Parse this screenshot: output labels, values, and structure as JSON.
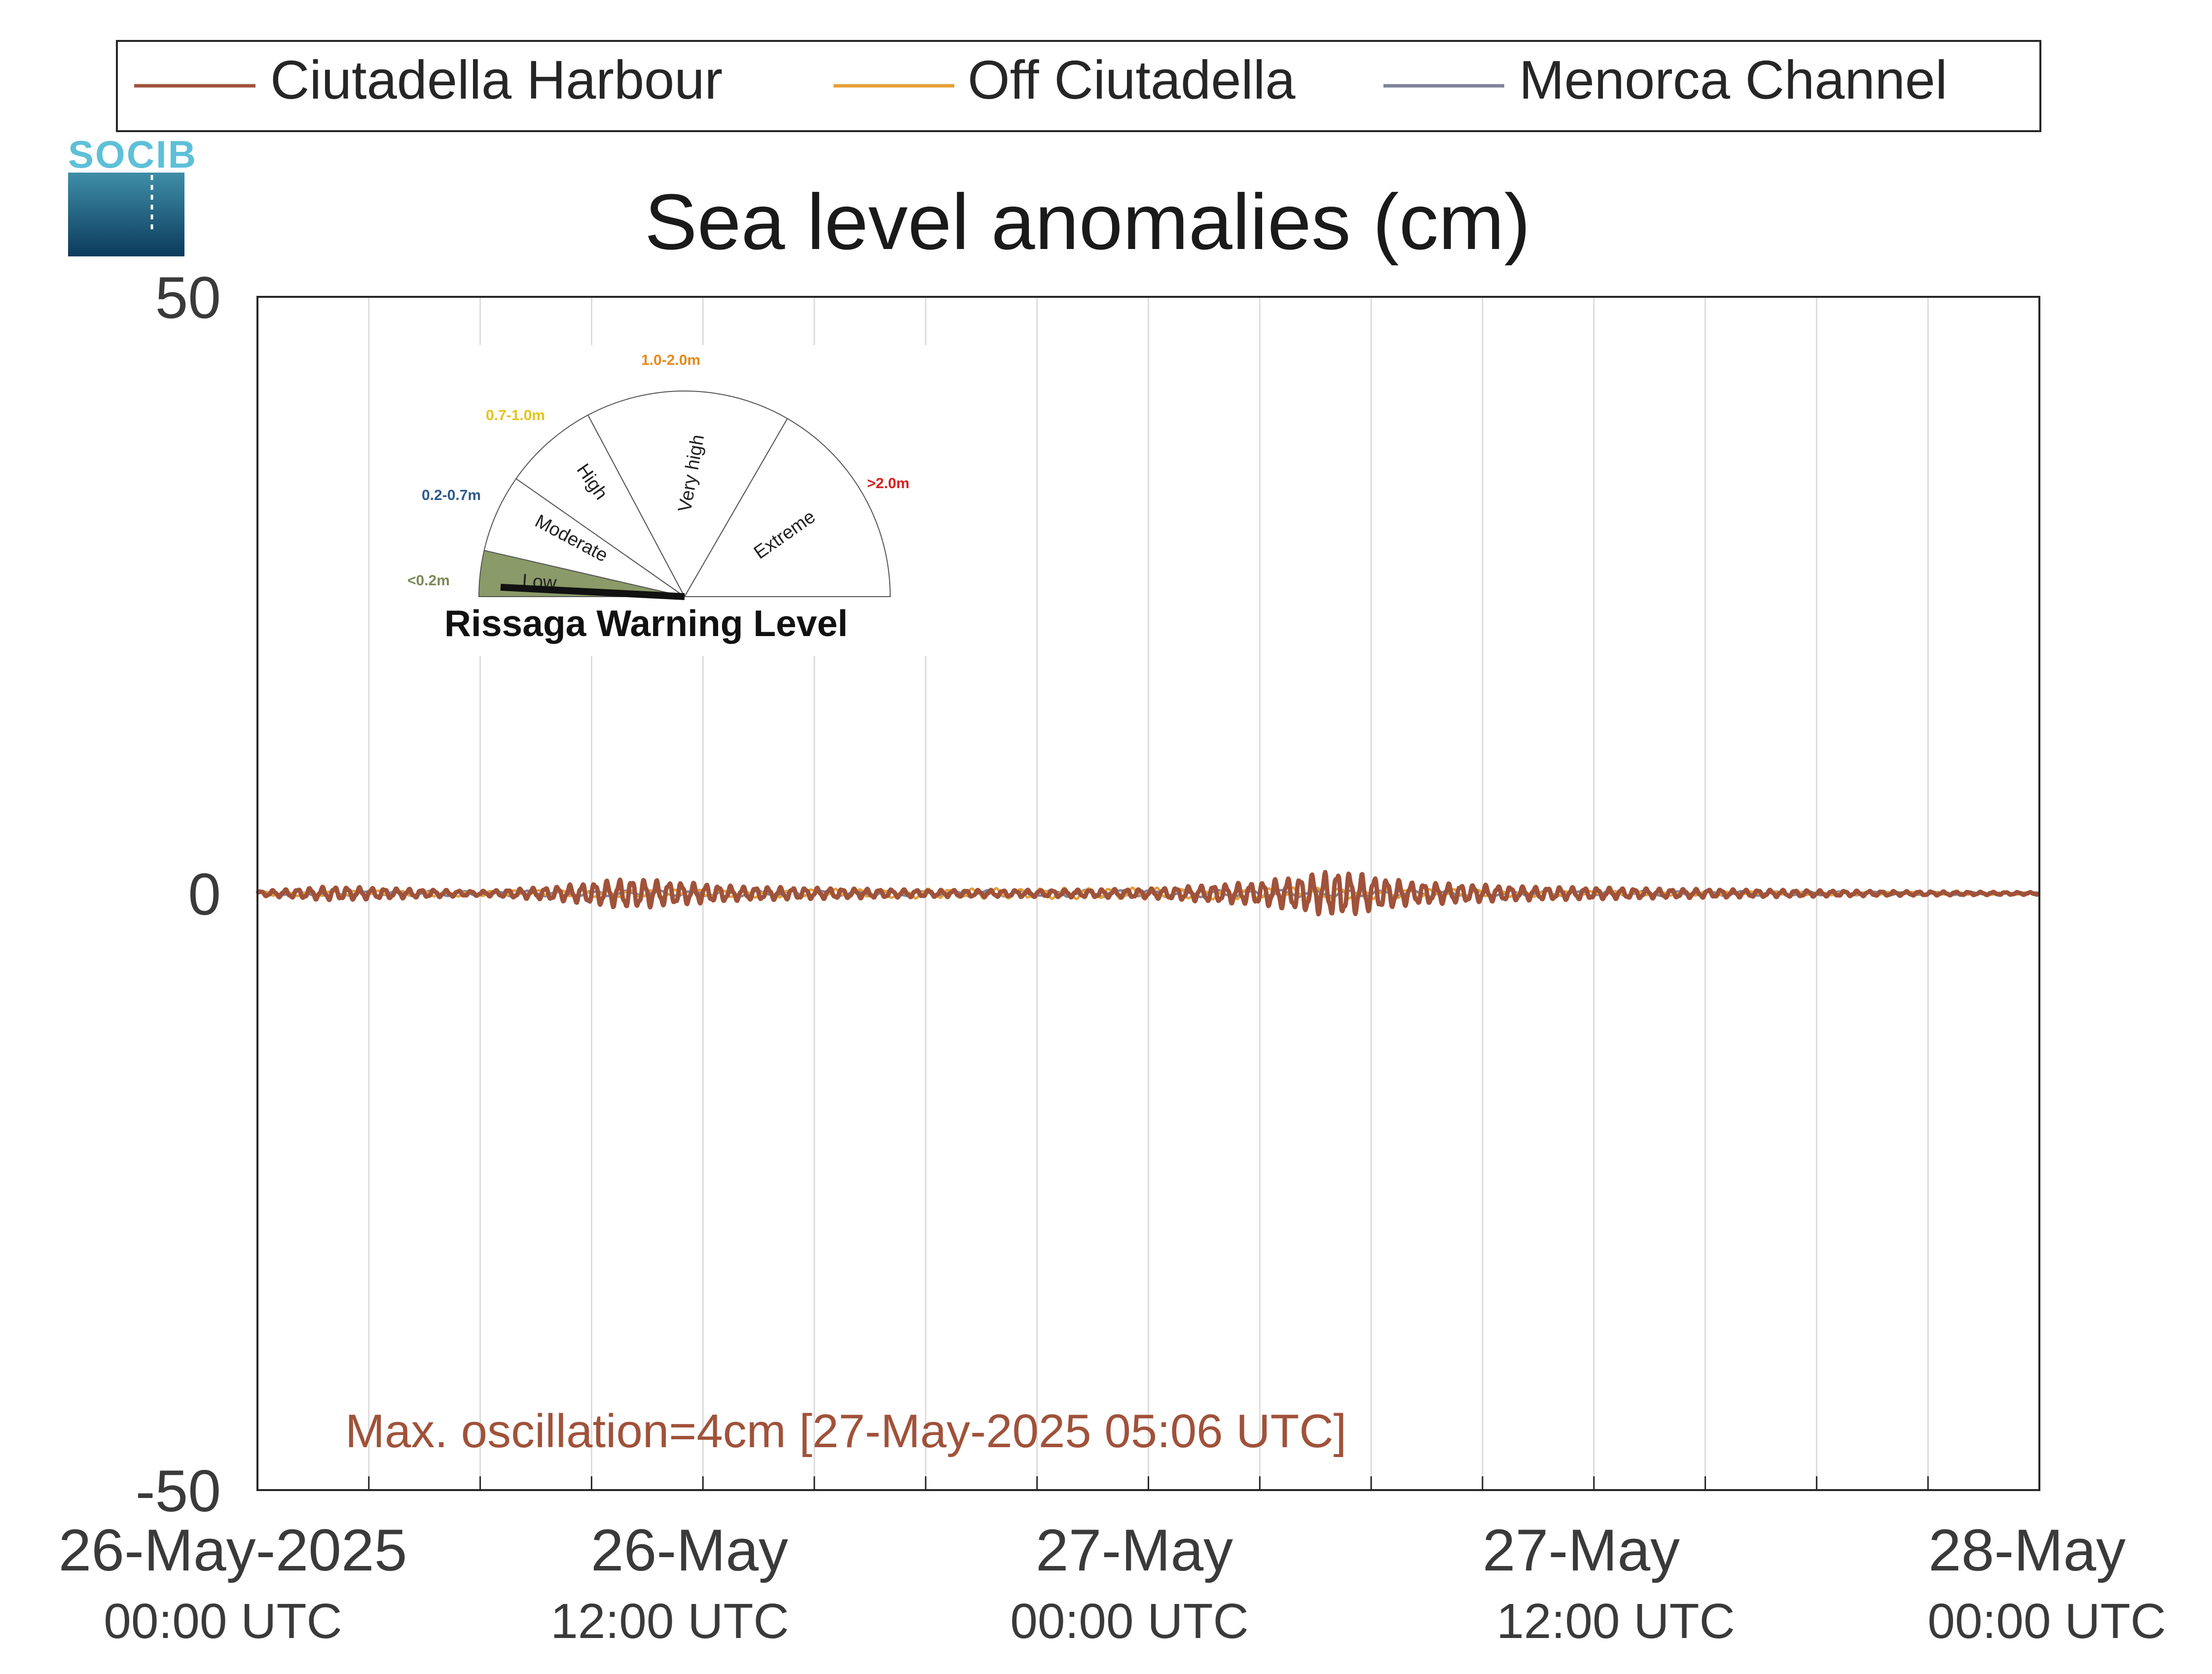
{
  "logo": {
    "text": "SOCIB"
  },
  "legend": {
    "items": [
      {
        "label": "Ciutadella Harbour",
        "color": "#a0523a"
      },
      {
        "label": "Off Ciutadella",
        "color": "#e5a03a"
      },
      {
        "label": "Menorca Channel",
        "color": "#7f839a"
      }
    ]
  },
  "chart_data": {
    "type": "line",
    "title": "Sea level anomalies (cm)",
    "xlabel": "",
    "ylabel": "",
    "ylim": [
      -50,
      50
    ],
    "yticks": [
      50,
      0,
      -50
    ],
    "xlim": [
      "2025-05-26 00:00",
      "2025-05-28 00:00"
    ],
    "xtick_labels": [
      {
        "x": "2025-05-26 00:00",
        "line1": "26-May-2025",
        "line2": "00:00 UTC"
      },
      {
        "x": "2025-05-26 12:00",
        "line1": "26-May",
        "line2": "12:00 UTC"
      },
      {
        "x": "2025-05-27 00:00",
        "line1": "27-May",
        "line2": "00:00 UTC"
      },
      {
        "x": "2025-05-27 12:00",
        "line1": "27-May",
        "line2": "12:00 UTC"
      },
      {
        "x": "2025-05-28 00:00",
        "line1": "28-May",
        "line2": "00:00 UTC"
      }
    ],
    "grid": true,
    "legend_position": "top",
    "series": [
      {
        "name": "Ciutadella Harbour",
        "color": "#a0523a",
        "amplitude_envelope_cm": [
          [
            "2025-05-26 00:00",
            0.2
          ],
          [
            "2025-05-26 02:00",
            0.6
          ],
          [
            "2025-05-26 03:00",
            0.5
          ],
          [
            "2025-05-26 06:00",
            0.2
          ],
          [
            "2025-05-26 08:00",
            0.6
          ],
          [
            "2025-05-26 10:00",
            1.3
          ],
          [
            "2025-05-26 13:00",
            0.6
          ],
          [
            "2025-05-26 18:00",
            0.3
          ],
          [
            "2025-05-26 21:00",
            0.3
          ],
          [
            "2025-05-27 00:00",
            0.4
          ],
          [
            "2025-05-27 03:00",
            1.0
          ],
          [
            "2025-05-27 05:06",
            2.0
          ],
          [
            "2025-05-27 07:00",
            1.0
          ],
          [
            "2025-05-27 10:00",
            0.6
          ],
          [
            "2025-05-27 14:00",
            0.4
          ],
          [
            "2025-05-27 20:00",
            0.2
          ],
          [
            "2025-05-28 00:00",
            0.1
          ]
        ]
      },
      {
        "name": "Off Ciutadella",
        "color": "#e5a03a",
        "amplitude_envelope_cm": [
          [
            "2025-05-26 00:00",
            0.2
          ],
          [
            "2025-05-26 10:00",
            0.3
          ],
          [
            "2025-05-27 00:00",
            0.5
          ],
          [
            "2025-05-27 05:00",
            0.5
          ],
          [
            "2025-05-27 12:00",
            0.2
          ],
          [
            "2025-05-28 00:00",
            0.1
          ]
        ]
      },
      {
        "name": "Menorca Channel",
        "color": "#7f839a",
        "amplitude_envelope_cm": [
          [
            "2025-05-26 00:00",
            0.2
          ],
          [
            "2025-05-27 00:00",
            0.3
          ],
          [
            "2025-05-27 05:00",
            0.3
          ],
          [
            "2025-05-28 00:00",
            0.1
          ]
        ]
      }
    ],
    "annotation": {
      "text": "Max. oscillation=4cm [27-May-2025 05:06 UTC]",
      "color": "#a0523a"
    }
  },
  "gauge": {
    "title": "Rissaga Warning Level",
    "active_level": "Low",
    "sectors": [
      {
        "label": "Low",
        "range": "<0.2m",
        "range_color": "#7a8a55",
        "fill": "#8a9a68"
      },
      {
        "label": "Moderate",
        "range": "0.2-0.7m",
        "range_color": "#2f5a8a",
        "fill": "#ffffff"
      },
      {
        "label": "High",
        "range": "0.7-1.0m",
        "range_color": "#e8c21a",
        "fill": "#ffffff"
      },
      {
        "label": "Very high",
        "range": "1.0-2.0m",
        "range_color": "#e58a1a",
        "fill": "#ffffff"
      },
      {
        "label": "Extreme",
        "range": ">2.0m",
        "range_color": "#d42020",
        "fill": "#ffffff"
      }
    ]
  }
}
